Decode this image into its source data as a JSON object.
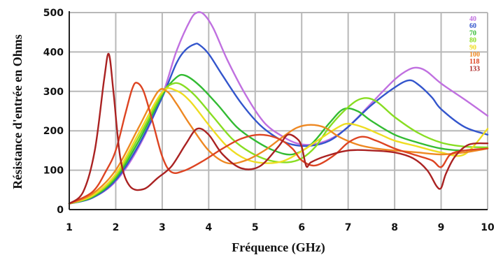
{
  "chart_data": {
    "type": "line",
    "title": "",
    "xlabel": "Fréquence (GHz)",
    "ylabel": "Résistance d'entrée en Ohms",
    "xlim": [
      1,
      10
    ],
    "ylim": [
      0,
      500
    ],
    "xticks": [
      "1",
      "2",
      "3",
      "4",
      "5",
      "6",
      "7",
      "8",
      "9",
      "10"
    ],
    "yticks": [
      "0",
      "100",
      "200",
      "300",
      "400",
      "500"
    ],
    "grid": true,
    "legend_position": "top-right",
    "series": [
      {
        "name": "40",
        "color": "#c070e0",
        "x": [
          1,
          1.5,
          2,
          2.5,
          3,
          3.3,
          3.6,
          3.75,
          3.9,
          4.1,
          4.4,
          4.8,
          5.2,
          5.6,
          5.9,
          6.2,
          6.6,
          7,
          7.5,
          8,
          8.3,
          8.5,
          8.7,
          9,
          9.5,
          10
        ],
        "y": [
          15,
          30,
          72,
          160,
          290,
          400,
          480,
          500,
          495,
          460,
          380,
          290,
          220,
          185,
          168,
          165,
          178,
          210,
          270,
          330,
          355,
          360,
          350,
          320,
          280,
          238
        ]
      },
      {
        "name": "60",
        "color": "#3355cc",
        "x": [
          1,
          1.5,
          2,
          2.5,
          3,
          3.3,
          3.5,
          3.7,
          3.8,
          4,
          4.3,
          4.7,
          5.1,
          5.5,
          5.8,
          6.2,
          6.6,
          7,
          7.5,
          8,
          8.3,
          8.5,
          8.8,
          9,
          9.5,
          10
        ],
        "y": [
          15,
          30,
          75,
          165,
          285,
          370,
          405,
          420,
          418,
          395,
          340,
          270,
          215,
          180,
          165,
          162,
          175,
          210,
          265,
          310,
          328,
          318,
          285,
          255,
          210,
          190
        ]
      },
      {
        "name": "70",
        "color": "#33bb33",
        "x": [
          1,
          1.5,
          2,
          2.5,
          3,
          3.3,
          3.5,
          3.8,
          4.2,
          4.6,
          5,
          5.4,
          5.8,
          6.2,
          6.6,
          6.9,
          7.2,
          7.5,
          8,
          8.5,
          9,
          9.5,
          10
        ],
        "y": [
          15,
          32,
          80,
          175,
          290,
          335,
          340,
          315,
          265,
          210,
          175,
          150,
          140,
          165,
          220,
          255,
          250,
          225,
          190,
          170,
          155,
          150,
          155
        ]
      },
      {
        "name": "80",
        "color": "#88dd22",
        "x": [
          1,
          1.5,
          2,
          2.5,
          3,
          3.2,
          3.4,
          3.7,
          4.1,
          4.5,
          4.9,
          5.3,
          5.7,
          6,
          6.3,
          6.6,
          7,
          7.3,
          7.6,
          8,
          8.5,
          9,
          9.5,
          10
        ],
        "y": [
          15,
          34,
          85,
          185,
          295,
          318,
          318,
          290,
          235,
          180,
          145,
          125,
          120,
          130,
          160,
          210,
          260,
          282,
          275,
          235,
          195,
          170,
          160,
          158
        ]
      },
      {
        "name": "90",
        "color": "#eedd22",
        "x": [
          1,
          1.5,
          2,
          2.5,
          3,
          3.3,
          3.6,
          4,
          4.4,
          4.8,
          5.2,
          5.6,
          6,
          6.4,
          6.8,
          7,
          7.3,
          7.7,
          8,
          8.5,
          9,
          9.5,
          10
        ],
        "y": [
          15,
          36,
          90,
          195,
          298,
          302,
          275,
          215,
          160,
          128,
          118,
          123,
          148,
          180,
          210,
          218,
          210,
          190,
          175,
          160,
          145,
          140,
          205
        ]
      },
      {
        "name": "100",
        "color": "#ee8822",
        "x": [
          1,
          1.5,
          2,
          2.5,
          2.9,
          3.1,
          3.3,
          3.6,
          4,
          4.4,
          4.8,
          5.2,
          5.6,
          5.9,
          6.2,
          6.5,
          6.8,
          7.2,
          7.6,
          8,
          8.5,
          9,
          9.5,
          10
        ],
        "y": [
          15,
          40,
          100,
          210,
          298,
          300,
          270,
          215,
          150,
          118,
          125,
          150,
          185,
          208,
          215,
          208,
          185,
          165,
          155,
          150,
          145,
          140,
          145,
          155
        ]
      },
      {
        "name": "118",
        "color": "#dd4422",
        "x": [
          1,
          1.5,
          1.8,
          2,
          2.2,
          2.35,
          2.45,
          2.6,
          2.8,
          3,
          3.2,
          3.5,
          3.9,
          4.3,
          4.7,
          5.1,
          5.5,
          5.8,
          6,
          6.3,
          6.7,
          7,
          7.3,
          7.6,
          8,
          8.4,
          8.8,
          9,
          9.2,
          9.5,
          10
        ],
        "y": [
          15,
          45,
          100,
          150,
          240,
          305,
          322,
          300,
          220,
          135,
          95,
          100,
          125,
          155,
          180,
          190,
          180,
          155,
          125,
          112,
          138,
          170,
          185,
          175,
          155,
          140,
          125,
          108,
          140,
          150,
          155
        ]
      },
      {
        "name": "133",
        "color": "#aa2222",
        "x": [
          1,
          1.3,
          1.55,
          1.75,
          1.85,
          1.95,
          2.1,
          2.3,
          2.6,
          2.9,
          3.2,
          3.5,
          3.75,
          4,
          4.3,
          4.7,
          5.1,
          5.5,
          5.7,
          5.9,
          6,
          6.1,
          6.2,
          6.5,
          7,
          7.5,
          8,
          8.4,
          8.7,
          8.9,
          9,
          9.1,
          9.3,
          9.6,
          10
        ],
        "y": [
          15,
          45,
          150,
          330,
          395,
          300,
          130,
          60,
          52,
          80,
          110,
          165,
          205,
          190,
          140,
          105,
          110,
          160,
          190,
          180,
          160,
          110,
          120,
          135,
          150,
          150,
          145,
          130,
          100,
          60,
          55,
          90,
          135,
          165,
          168
        ]
      }
    ]
  }
}
